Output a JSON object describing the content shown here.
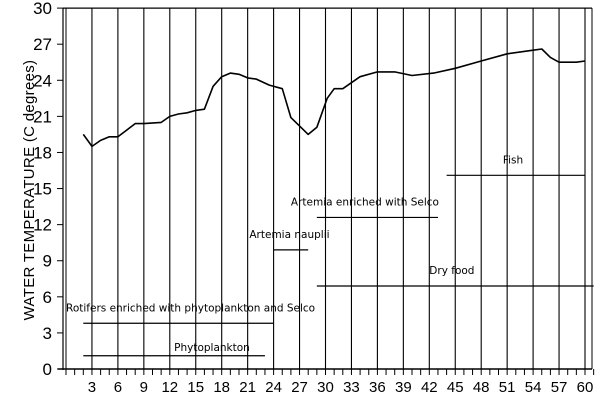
{
  "chart_data": {
    "type": "line",
    "title": "",
    "xlabel": "",
    "ylabel": "WATER TEMPERATURE (C degrees)",
    "xlim": [
      0,
      61
    ],
    "ylim": [
      0,
      30
    ],
    "grid": "vertical lines every 3 days",
    "x_ticks": [
      3,
      6,
      9,
      12,
      15,
      18,
      21,
      24,
      27,
      30,
      33,
      36,
      39,
      42,
      45,
      48,
      51,
      54,
      57,
      60
    ],
    "y_ticks": [
      0,
      3,
      6,
      9,
      12,
      15,
      18,
      21,
      24,
      27,
      30
    ],
    "series": [
      {
        "name": "Water temperature",
        "x": [
          2,
          3,
          4,
          5,
          6,
          8,
          9,
          11,
          12,
          13,
          14,
          15,
          16,
          17,
          18,
          19,
          20,
          21,
          22,
          23.5,
          25,
          26,
          28,
          29,
          30.2,
          31,
          32,
          33,
          34,
          36,
          38,
          40,
          42.5,
          45,
          48,
          51,
          54,
          55,
          56,
          57,
          59,
          60
        ],
        "values": [
          19.5,
          18.5,
          19.0,
          19.3,
          19.3,
          20.4,
          20.4,
          20.5,
          21.0,
          21.2,
          21.3,
          21.5,
          21.6,
          23.5,
          24.3,
          24.6,
          24.5,
          24.2,
          24.1,
          23.6,
          23.3,
          20.9,
          19.5,
          20.1,
          22.5,
          23.3,
          23.3,
          23.8,
          24.3,
          24.7,
          24.7,
          24.4,
          24.6,
          25.0,
          25.6,
          26.2,
          26.5,
          26.6,
          25.9,
          25.5,
          25.5,
          25.6
        ]
      }
    ],
    "annotations": [
      {
        "label": "Phytoplankton",
        "y": 1.1,
        "x_start": 2,
        "x_end": 23,
        "label_x": 12.5,
        "label_y": 1.5
      },
      {
        "label": "Rotifers enriched with phytoplankton and Selco",
        "y": 3.8,
        "x_start": 2,
        "x_end": 24,
        "label_x": 0,
        "label_y": 4.8
      },
      {
        "label": "Artemia nauplii",
        "y": 9.9,
        "x_start": 24,
        "x_end": 28,
        "label_x": 21.2,
        "label_y": 10.9
      },
      {
        "label": "Artemia enriched with Selco",
        "y": 12.6,
        "x_start": 29,
        "x_end": 43,
        "label_x": 26,
        "label_y": 13.6
      },
      {
        "label": "Dry food",
        "y": 6.9,
        "x_start": 29,
        "x_end": 61,
        "label_x": 42,
        "label_y": 7.9
      },
      {
        "label": "Fish",
        "y": 16.1,
        "x_start": 44,
        "x_end": 60,
        "label_x": 50.5,
        "label_y": 17.1
      }
    ]
  }
}
